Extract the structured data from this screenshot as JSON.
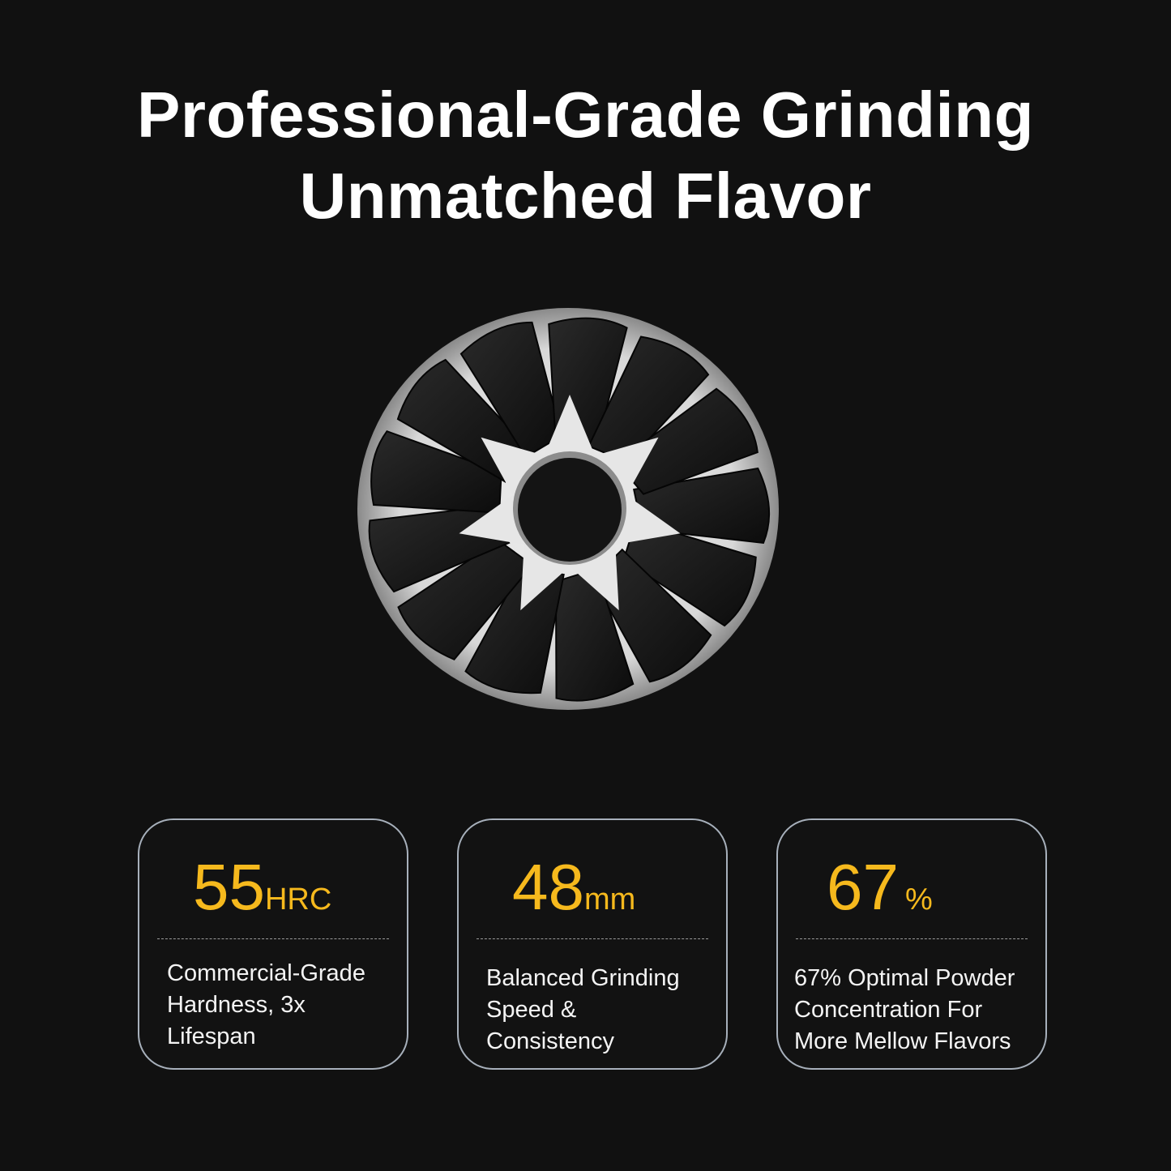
{
  "headline": {
    "line1": "Professional-Grade Grinding",
    "line2": "Unmatched Flavor"
  },
  "image": {
    "subject": "conical-burr-icon"
  },
  "colors": {
    "background": "#111111",
    "accent": "#f6b91d",
    "card_border": "#a7b0bb"
  },
  "cards": [
    {
      "value": "55",
      "unit": "HRC",
      "lines": [
        "Commercial-Grade",
        "Hardness, 3x",
        "Lifespan"
      ]
    },
    {
      "value": "48",
      "unit": "mm",
      "lines": [
        "Balanced Grinding",
        "Speed &",
        "Consistency"
      ]
    },
    {
      "value": "67",
      "unit": "%",
      "lines": [
        "67% Optimal Powder",
        "Concentration For",
        "More Mellow Flavors"
      ]
    }
  ]
}
